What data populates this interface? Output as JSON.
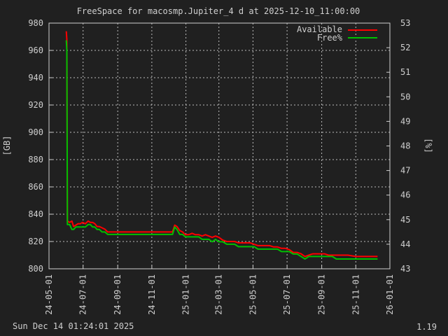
{
  "footer": {
    "timestamp": "Sun Dec 14 01:24:01 2025",
    "version": "1.19"
  },
  "chart_data": {
    "type": "line",
    "title": "FreeSpace for macosmp.Jupiter_4 d at 2025-12-10_11:00:00",
    "ylabel": "[GB]",
    "y2label": "[%]",
    "xlabel": "",
    "ylim": [
      800,
      980
    ],
    "y2lim": [
      43,
      53
    ],
    "yticks": [
      800,
      820,
      840,
      860,
      880,
      900,
      920,
      940,
      960,
      980
    ],
    "y2ticks": [
      43,
      44,
      45,
      46,
      47,
      48,
      49,
      50,
      51,
      52,
      53
    ],
    "xlim": [
      "2024-05-01",
      "2026-01-01"
    ],
    "xticks": [
      "24-05-01",
      "24-07-01",
      "24-09-01",
      "24-11-01",
      "25-01-01",
      "25-03-01",
      "25-05-01",
      "25-07-01",
      "25-09-01",
      "25-11-01",
      "26-01-01"
    ],
    "xtick_dates": [
      "2024-05-01",
      "2024-07-01",
      "2024-09-01",
      "2024-11-01",
      "2025-01-01",
      "2025-03-01",
      "2025-05-01",
      "2025-07-01",
      "2025-09-01",
      "2025-11-01",
      "2026-01-01"
    ],
    "grid": true,
    "legend_position": "top-right",
    "series": [
      {
        "name": "Available",
        "color": "#ff0000",
        "axis": "left",
        "x": [
          "2024-06-01",
          "2024-06-02",
          "2024-06-03",
          "2024-06-07",
          "2024-06-11",
          "2024-06-14",
          "2024-06-18",
          "2024-06-22",
          "2024-06-26",
          "2024-06-30",
          "2024-07-05",
          "2024-07-10",
          "2024-07-14",
          "2024-07-18",
          "2024-07-22",
          "2024-07-26",
          "2024-07-30",
          "2024-08-04",
          "2024-08-09",
          "2024-08-14",
          "2024-08-19",
          "2024-08-24",
          "2024-08-29",
          "2024-09-03",
          "2024-09-08",
          "2024-09-13",
          "2024-09-18",
          "2024-10-01",
          "2024-10-15",
          "2024-11-01",
          "2024-11-15",
          "2024-12-01",
          "2024-12-08",
          "2024-12-12",
          "2024-12-16",
          "2024-12-21",
          "2024-12-26",
          "2024-12-31",
          "2025-01-06",
          "2025-01-12",
          "2025-01-18",
          "2025-01-24",
          "2025-01-30",
          "2025-02-05",
          "2025-02-11",
          "2025-02-17",
          "2025-02-23",
          "2025-03-01",
          "2025-03-08",
          "2025-03-15",
          "2025-03-22",
          "2025-03-29",
          "2025-04-05",
          "2025-04-12",
          "2025-04-19",
          "2025-04-26",
          "2025-05-03",
          "2025-05-10",
          "2025-05-17",
          "2025-05-24",
          "2025-05-31",
          "2025-06-07",
          "2025-06-14",
          "2025-06-21",
          "2025-06-28",
          "2025-07-05",
          "2025-07-12",
          "2025-07-19",
          "2025-07-26",
          "2025-08-02",
          "2025-08-09",
          "2025-08-16",
          "2025-08-23",
          "2025-08-30",
          "2025-09-06",
          "2025-09-13",
          "2025-09-20",
          "2025-09-27",
          "2025-10-04",
          "2025-10-18",
          "2025-11-01",
          "2025-11-15",
          "2025-12-01",
          "2025-12-10"
        ],
        "values": [
          974,
          968,
          835,
          834,
          835,
          831,
          832,
          833,
          833,
          834,
          833,
          835,
          834,
          834,
          833,
          831,
          831,
          830,
          829,
          827,
          827,
          827,
          827,
          827,
          827,
          827,
          827,
          827,
          827,
          827,
          827,
          827,
          827,
          832,
          831,
          828,
          827,
          825,
          825,
          826,
          825,
          825,
          824,
          825,
          824,
          823,
          824,
          823,
          821,
          820,
          820,
          820,
          819,
          819,
          819,
          819,
          818,
          817,
          817,
          817,
          817,
          816,
          816,
          815,
          815,
          814,
          812,
          812,
          811,
          809,
          810,
          811,
          811,
          811,
          811,
          810,
          810,
          810,
          810,
          810,
          809,
          809,
          809,
          809
        ]
      },
      {
        "name": "Free%",
        "color": "#00c000",
        "axis": "right",
        "x": [
          "2024-06-01",
          "2024-06-02",
          "2024-06-03",
          "2024-06-07",
          "2024-06-11",
          "2024-06-14",
          "2024-06-18",
          "2024-06-22",
          "2024-06-26",
          "2024-06-30",
          "2024-07-05",
          "2024-07-10",
          "2024-07-14",
          "2024-07-18",
          "2024-07-22",
          "2024-07-26",
          "2024-07-30",
          "2024-08-04",
          "2024-08-09",
          "2024-08-14",
          "2024-08-19",
          "2024-08-24",
          "2024-08-29",
          "2024-09-03",
          "2024-09-08",
          "2024-09-13",
          "2024-09-18",
          "2024-10-01",
          "2024-10-15",
          "2024-11-01",
          "2024-11-15",
          "2024-12-01",
          "2024-12-08",
          "2024-12-12",
          "2024-12-16",
          "2024-12-21",
          "2024-12-26",
          "2024-12-31",
          "2025-01-06",
          "2025-01-12",
          "2025-01-18",
          "2025-01-24",
          "2025-01-30",
          "2025-02-05",
          "2025-02-11",
          "2025-02-17",
          "2025-02-23",
          "2025-03-01",
          "2025-03-08",
          "2025-03-15",
          "2025-03-22",
          "2025-03-29",
          "2025-04-05",
          "2025-04-12",
          "2025-04-19",
          "2025-04-26",
          "2025-05-03",
          "2025-05-10",
          "2025-05-17",
          "2025-05-24",
          "2025-05-31",
          "2025-06-07",
          "2025-06-14",
          "2025-06-21",
          "2025-06-28",
          "2025-07-05",
          "2025-07-12",
          "2025-07-19",
          "2025-07-26",
          "2025-08-02",
          "2025-08-09",
          "2025-08-16",
          "2025-08-23",
          "2025-08-30",
          "2025-09-06",
          "2025-09-13",
          "2025-09-20",
          "2025-09-27",
          "2025-10-04",
          "2025-10-18",
          "2025-11-01",
          "2025-11-15",
          "2025-12-01",
          "2025-12-10"
        ],
        "values": [
          52.3,
          51.9,
          44.8,
          44.8,
          44.6,
          44.6,
          44.7,
          44.7,
          44.7,
          44.7,
          44.7,
          44.8,
          44.8,
          44.7,
          44.7,
          44.6,
          44.6,
          44.5,
          44.5,
          44.4,
          44.4,
          44.4,
          44.4,
          44.4,
          44.4,
          44.4,
          44.4,
          44.4,
          44.4,
          44.4,
          44.4,
          44.4,
          44.4,
          44.7,
          44.6,
          44.4,
          44.4,
          44.3,
          44.3,
          44.3,
          44.3,
          44.3,
          44.2,
          44.2,
          44.2,
          44.1,
          44.2,
          44.1,
          44.1,
          44.0,
          44.0,
          44.0,
          43.9,
          43.9,
          43.9,
          43.9,
          43.9,
          43.8,
          43.8,
          43.8,
          43.8,
          43.8,
          43.8,
          43.7,
          43.7,
          43.7,
          43.6,
          43.6,
          43.5,
          43.4,
          43.5,
          43.5,
          43.5,
          43.5,
          43.5,
          43.5,
          43.5,
          43.4,
          43.4,
          43.4,
          43.4,
          43.4,
          43.4,
          43.4
        ]
      }
    ]
  }
}
